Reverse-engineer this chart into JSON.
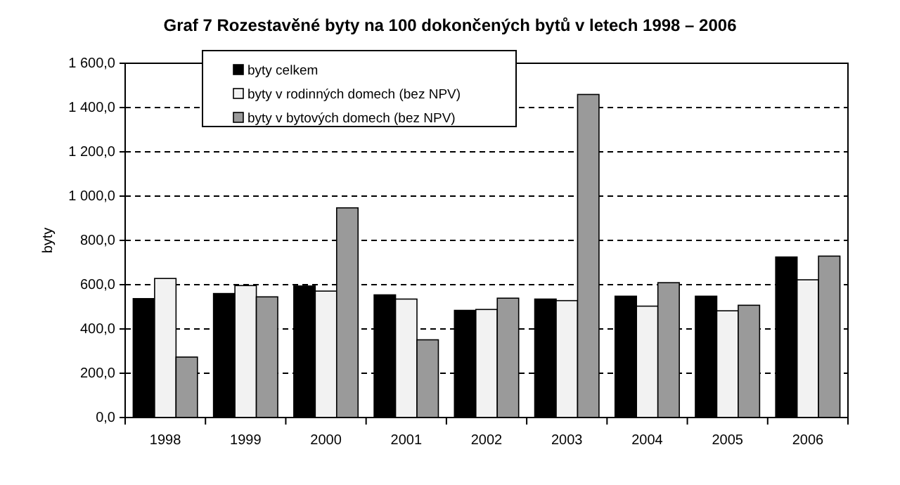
{
  "chart_data": {
    "type": "bar",
    "title": "Graf 7 Rozestavěné byty na 100 dokončených bytů v letech 1998 – 2006",
    "ylabel": "byty",
    "categories": [
      "1998",
      "1999",
      "2000",
      "2001",
      "2002",
      "2003",
      "2004",
      "2005",
      "2006"
    ],
    "series": [
      {
        "name": "byty celkem",
        "color": "#000000",
        "values": [
          537,
          560,
          594,
          554,
          484,
          535,
          548,
          548,
          725
        ]
      },
      {
        "name": "byty v rodinných domech (bez NPV)",
        "color": "#f2f2f2",
        "values": [
          628,
          596,
          571,
          535,
          488,
          528,
          503,
          482,
          622
        ]
      },
      {
        "name": "byty v bytových domech (bez NPV)",
        "color": "#9a9a9a",
        "values": [
          273,
          545,
          947,
          351,
          539,
          1459,
          609,
          507,
          729
        ]
      }
    ],
    "ylim": [
      0,
      1600
    ],
    "yticks": [
      {
        "value": 0,
        "label": "0,0"
      },
      {
        "value": 200,
        "label": "200,0"
      },
      {
        "value": 400,
        "label": "400,0"
      },
      {
        "value": 600,
        "label": "600,0"
      },
      {
        "value": 800,
        "label": "800,0"
      },
      {
        "value": 1000,
        "label": "1 000,0"
      },
      {
        "value": 1200,
        "label": "1 200,0"
      },
      {
        "value": 1400,
        "label": "1 400,0"
      },
      {
        "value": 1600,
        "label": "1 600,0"
      }
    ],
    "grid": "y",
    "legend": "top left"
  }
}
